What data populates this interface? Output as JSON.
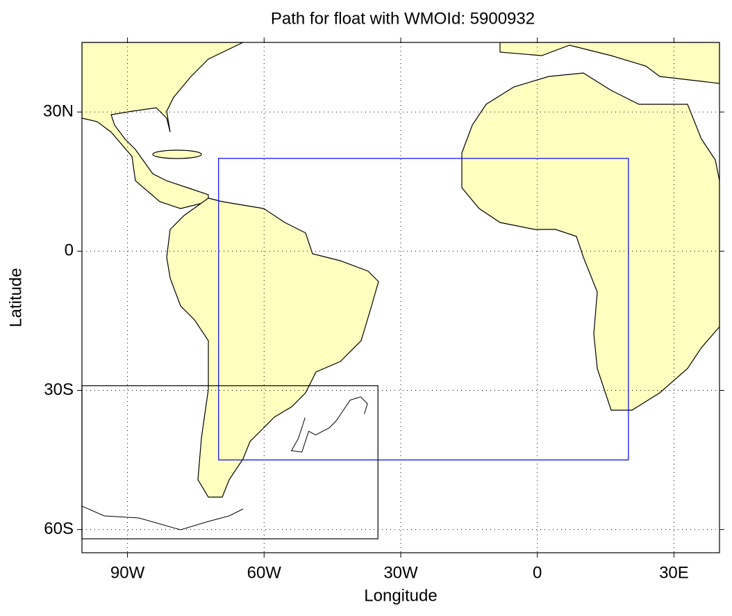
{
  "chart_data": {
    "type": "map",
    "title": "Path for float with WMOId: 5900932",
    "x_label": "Longitude",
    "y_label": "Latitude",
    "xlim": [
      -100,
      40
    ],
    "ylim": [
      -65,
      45
    ],
    "xticks": [
      {
        "value": -90,
        "label": "90W"
      },
      {
        "value": -60,
        "label": "60W"
      },
      {
        "value": -30,
        "label": "30W"
      },
      0,
      {
        "value": 30,
        "label": "30E"
      }
    ],
    "yticks": [
      {
        "value": 30,
        "label": "30N"
      },
      0,
      {
        "value": -30,
        "label": "30S"
      },
      {
        "value": -60,
        "label": "60S"
      }
    ],
    "grid": true,
    "regions": [
      {
        "color": "#0000ff",
        "xlim": [
          -70,
          20
        ],
        "ylim": [
          -45,
          20
        ]
      },
      {
        "color": "#000000",
        "xlim": [
          -100,
          -35
        ],
        "ylim": [
          -62,
          -29
        ]
      }
    ],
    "series": [
      {
        "color": "#000000",
        "x": [
          -51,
          -52.5,
          -54,
          -51.7,
          -50.2,
          -48.7,
          -45.7,
          -44.2,
          -42.6,
          -41.1,
          -38.8,
          -37.3,
          -38
        ],
        "y": [
          -35.9,
          -40.4,
          -43,
          -43.3,
          -38.8,
          -39.6,
          -38.1,
          -36.6,
          -34.3,
          -32.1,
          -31.4,
          -32.9,
          -35.1
        ]
      }
    ]
  }
}
